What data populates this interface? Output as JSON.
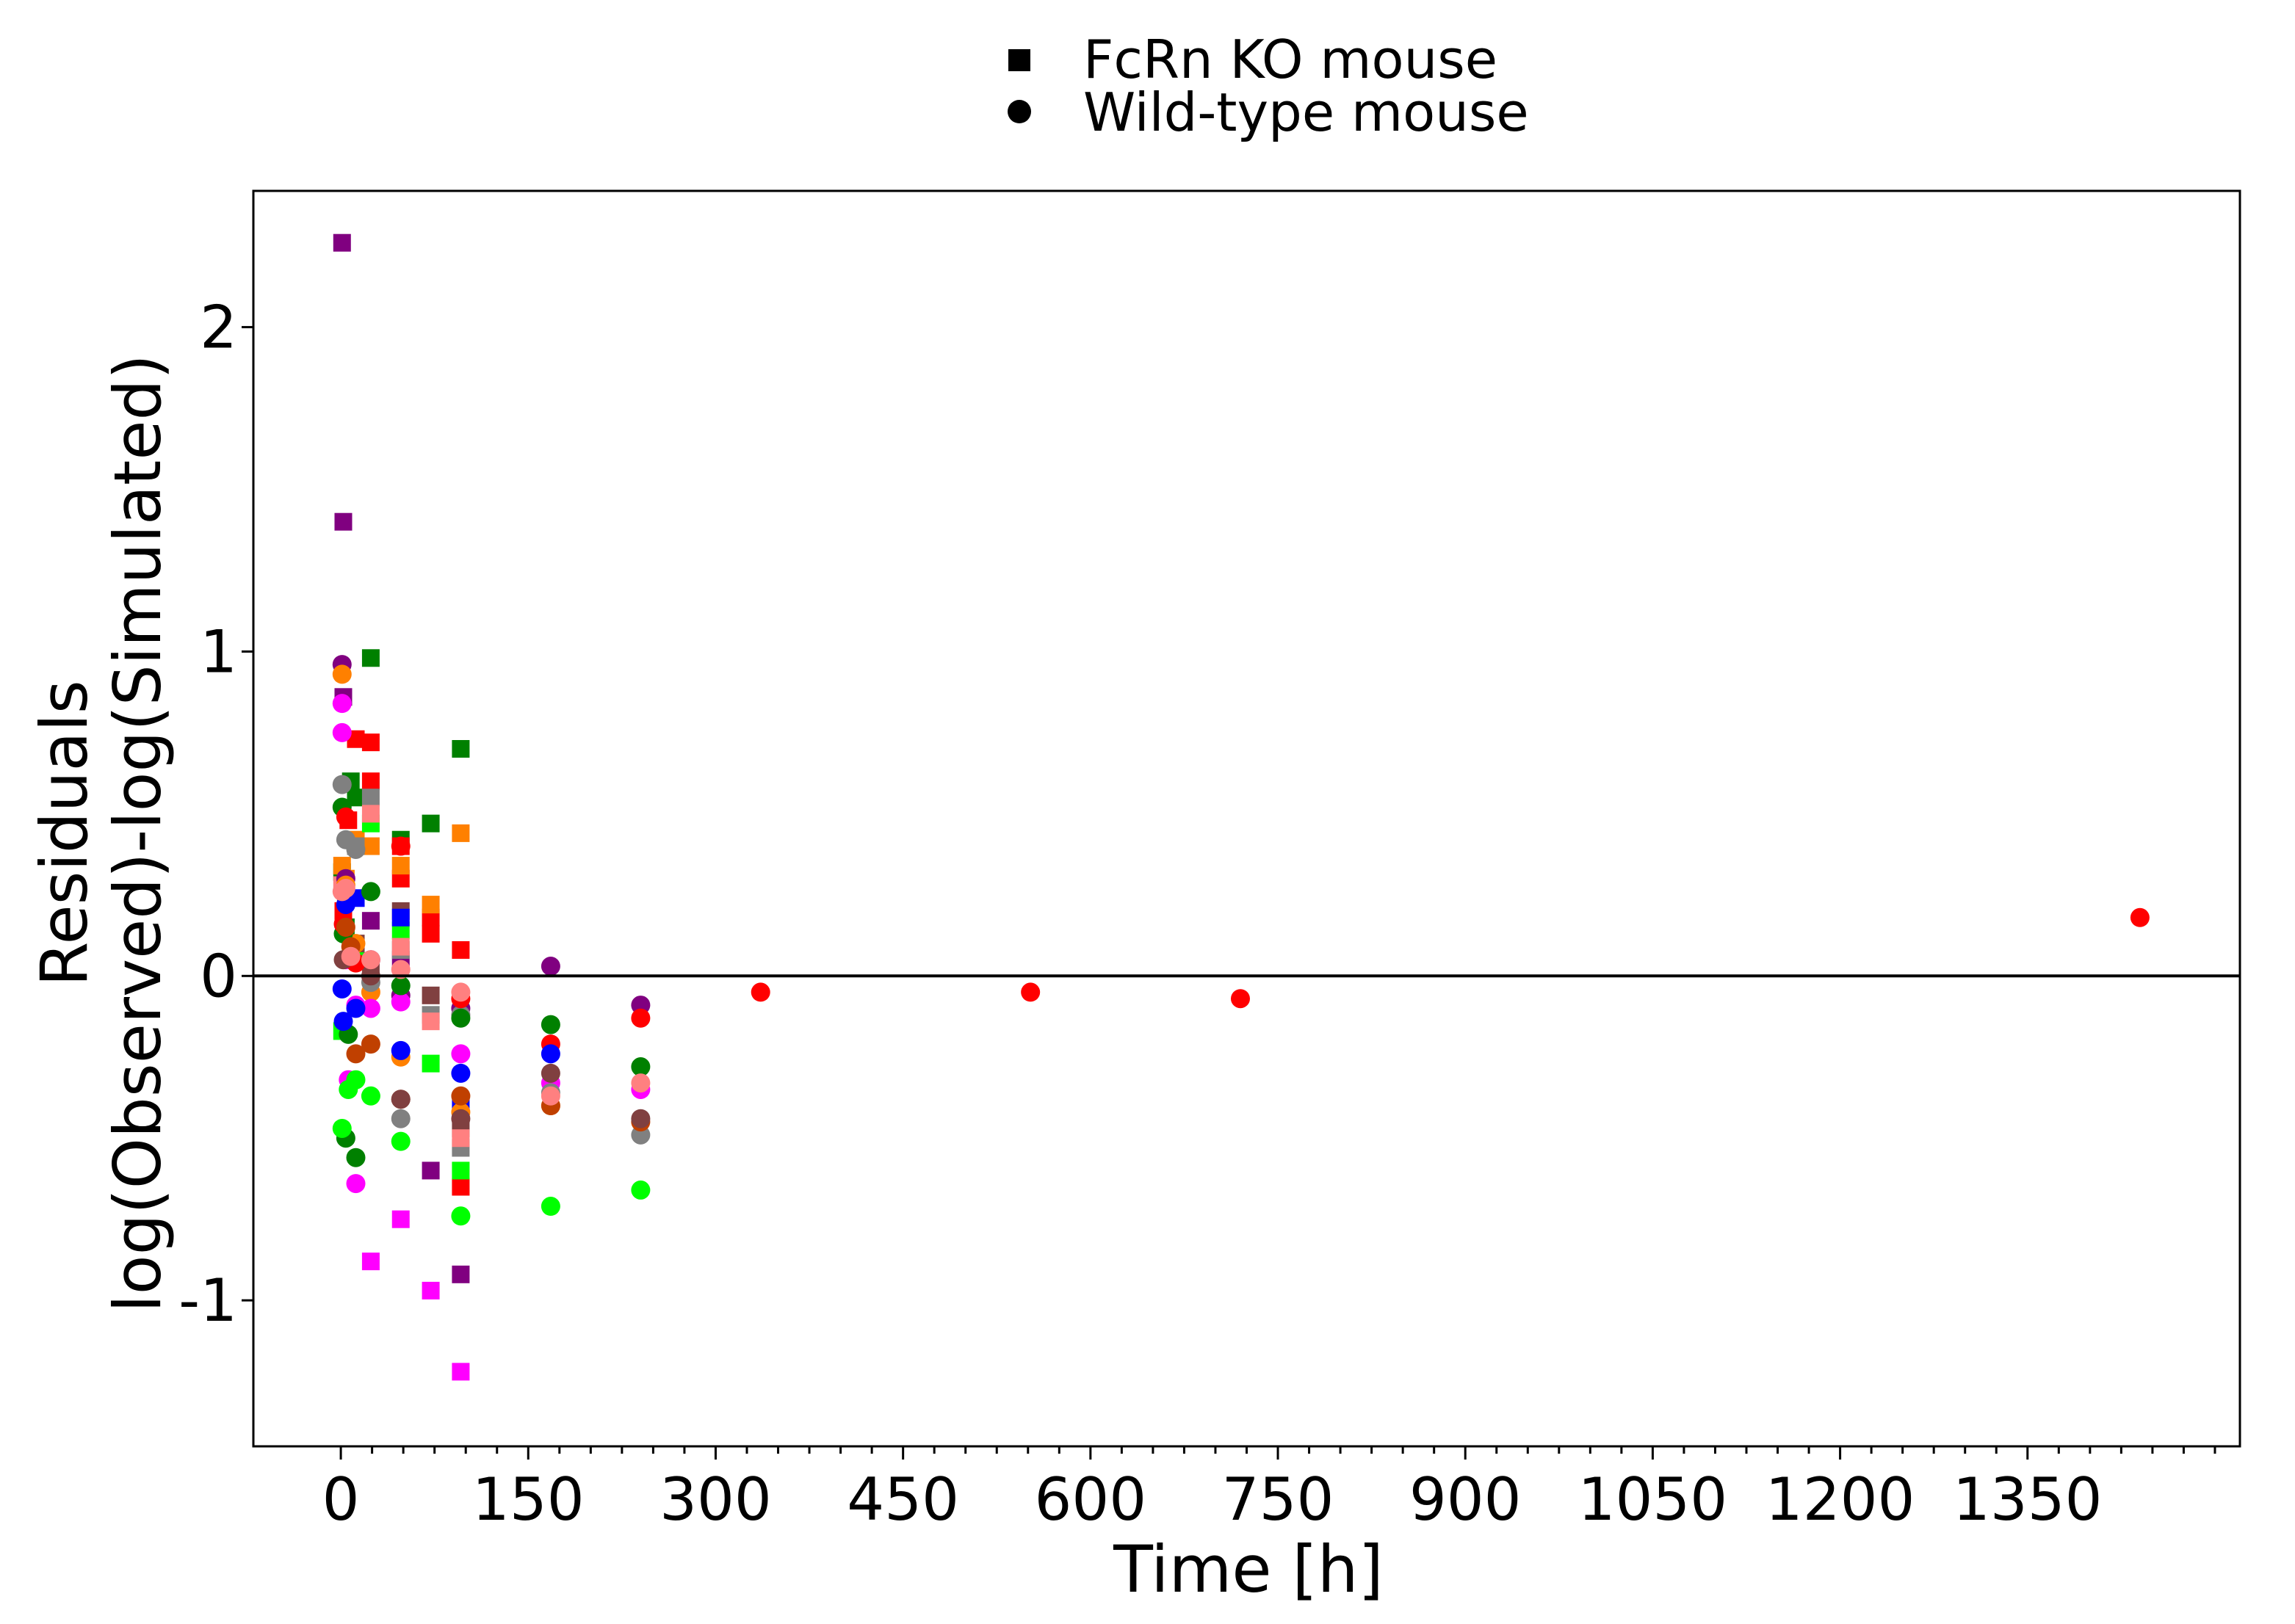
{
  "chart_data": {
    "type": "scatter",
    "title": "",
    "xlabel": "Time [h]",
    "ylabel": [
      "Residuals",
      "log(Observed)-log(Simulated)"
    ],
    "xlim": [
      -70,
      1520
    ],
    "ylim": [
      -1.45,
      2.42
    ],
    "xticks": [
      0,
      150,
      300,
      450,
      600,
      750,
      900,
      1050,
      1200,
      1350
    ],
    "xtick_labels": [
      "0",
      "150",
      "300",
      "450",
      "600",
      "750",
      "900",
      "1050",
      "1200",
      "1350"
    ],
    "x_minor_step": 25,
    "yticks": [
      -1,
      0,
      1,
      2
    ],
    "ytick_labels": [
      "-1",
      "0",
      "1",
      "2"
    ],
    "reference_line_y": 0,
    "grid": false,
    "legend": {
      "placement": "top-center",
      "entries": [
        {
          "label": "FcRn KO mouse",
          "marker": "square"
        },
        {
          "label": "Wild-type mouse",
          "marker": "circle"
        }
      ]
    },
    "marker_legend_color": "#000000",
    "series": [
      {
        "marker": "square",
        "color": "#800080",
        "points": [
          [
            1,
            2.26
          ],
          [
            2,
            1.4
          ],
          [
            2,
            0.86
          ],
          [
            24,
            0.17
          ],
          [
            72,
            -0.6
          ],
          [
            96,
            -0.92
          ],
          [
            48,
            0.05
          ]
        ]
      },
      {
        "marker": "square",
        "color": "#008000",
        "points": [
          [
            24,
            0.98
          ],
          [
            96,
            0.7
          ],
          [
            72,
            0.47
          ],
          [
            48,
            0.42
          ],
          [
            8,
            0.6
          ],
          [
            12,
            0.55
          ],
          [
            1,
            0.32
          ],
          [
            4,
            0.15
          ]
        ]
      },
      {
        "marker": "square",
        "color": "#ff0000",
        "points": [
          [
            12,
            0.73
          ],
          [
            24,
            0.72
          ],
          [
            24,
            0.6
          ],
          [
            6,
            0.48
          ],
          [
            48,
            0.4
          ],
          [
            48,
            0.3
          ],
          [
            72,
            0.18
          ],
          [
            72,
            0.13
          ],
          [
            96,
            0.08
          ],
          [
            96,
            -0.65
          ],
          [
            2,
            0.2
          ]
        ]
      },
      {
        "marker": "square",
        "color": "#ff8000",
        "points": [
          [
            96,
            0.44
          ],
          [
            72,
            0.22
          ],
          [
            48,
            0.34
          ],
          [
            24,
            0.4
          ],
          [
            12,
            0.42
          ],
          [
            1,
            0.34
          ],
          [
            4,
            0.3
          ]
        ]
      },
      {
        "marker": "square",
        "color": "#ff00ff",
        "points": [
          [
            24,
            -0.88
          ],
          [
            72,
            -0.97
          ],
          [
            96,
            -1.22
          ],
          [
            48,
            -0.75
          ],
          [
            2,
            -0.16
          ]
        ]
      },
      {
        "marker": "square",
        "color": "#00ff00",
        "points": [
          [
            24,
            0.47
          ],
          [
            48,
            0.14
          ],
          [
            72,
            -0.27
          ],
          [
            96,
            -0.6
          ],
          [
            1,
            -0.17
          ],
          [
            12,
            0.05
          ]
        ]
      },
      {
        "marker": "square",
        "color": "#808080",
        "points": [
          [
            12,
            0.4
          ],
          [
            24,
            0.55
          ],
          [
            48,
            0.08
          ],
          [
            72,
            -0.12
          ],
          [
            96,
            -0.53
          ],
          [
            4,
            0.25
          ]
        ]
      },
      {
        "marker": "square",
        "color": "#804040",
        "points": [
          [
            24,
            0.03
          ],
          [
            48,
            0.2
          ],
          [
            72,
            -0.06
          ],
          [
            96,
            -0.47
          ],
          [
            12,
            0.1
          ]
        ]
      },
      {
        "marker": "square",
        "color": "#0000ff",
        "points": [
          [
            12,
            0.24
          ],
          [
            48,
            0.18
          ],
          [
            96,
            -0.4
          ],
          [
            4,
            0.28
          ]
        ]
      },
      {
        "marker": "square",
        "color": "#ff8080",
        "points": [
          [
            24,
            0.5
          ],
          [
            48,
            0.09
          ],
          [
            72,
            -0.14
          ],
          [
            96,
            -0.5
          ],
          [
            1,
            0.28
          ]
        ]
      },
      {
        "marker": "circle",
        "color": "#800080",
        "points": [
          [
            1,
            0.96
          ],
          [
            168,
            0.03
          ],
          [
            240,
            -0.09
          ],
          [
            96,
            -0.1
          ],
          [
            24,
            0.05
          ],
          [
            48,
            -0.06
          ],
          [
            4,
            0.3
          ]
        ]
      },
      {
        "marker": "circle",
        "color": "#ff8000",
        "points": [
          [
            1,
            0.93
          ],
          [
            4,
            0.28
          ],
          [
            12,
            0.1
          ],
          [
            24,
            -0.05
          ],
          [
            48,
            -0.25
          ],
          [
            96,
            -0.42
          ],
          [
            168,
            -0.4
          ]
        ]
      },
      {
        "marker": "circle",
        "color": "#ff00ff",
        "points": [
          [
            1,
            0.84
          ],
          [
            1,
            0.75
          ],
          [
            4,
            0.05
          ],
          [
            6,
            -0.32
          ],
          [
            12,
            -0.64
          ],
          [
            12,
            -0.09
          ],
          [
            24,
            -0.1
          ],
          [
            48,
            -0.08
          ],
          [
            96,
            -0.24
          ],
          [
            168,
            -0.33
          ],
          [
            240,
            -0.35
          ]
        ]
      },
      {
        "marker": "circle",
        "color": "#808080",
        "points": [
          [
            1,
            0.59
          ],
          [
            4,
            0.42
          ],
          [
            12,
            0.39
          ],
          [
            24,
            -0.02
          ],
          [
            48,
            -0.44
          ],
          [
            96,
            -0.12
          ],
          [
            168,
            -0.36
          ],
          [
            240,
            -0.49
          ]
        ]
      },
      {
        "marker": "circle",
        "color": "#008000",
        "points": [
          [
            1,
            0.52
          ],
          [
            2,
            0.13
          ],
          [
            4,
            -0.5
          ],
          [
            6,
            -0.18
          ],
          [
            12,
            -0.56
          ],
          [
            24,
            0.26
          ],
          [
            48,
            -0.03
          ],
          [
            96,
            -0.13
          ],
          [
            168,
            -0.15
          ],
          [
            240,
            -0.28
          ]
        ]
      },
      {
        "marker": "circle",
        "color": "#ff0000",
        "points": [
          [
            4,
            0.49
          ],
          [
            2,
            0.16
          ],
          [
            12,
            0.04
          ],
          [
            48,
            0.4
          ],
          [
            96,
            -0.07
          ],
          [
            168,
            -0.21
          ],
          [
            240,
            -0.13
          ],
          [
            336,
            -0.05
          ],
          [
            552,
            -0.05
          ],
          [
            720,
            -0.07
          ],
          [
            1440,
            0.18
          ]
        ]
      },
      {
        "marker": "circle",
        "color": "#00ff00",
        "points": [
          [
            1,
            -0.47
          ],
          [
            6,
            -0.35
          ],
          [
            12,
            -0.32
          ],
          [
            24,
            -0.37
          ],
          [
            48,
            -0.51
          ],
          [
            96,
            -0.74
          ],
          [
            168,
            -0.71
          ],
          [
            240,
            -0.66
          ]
        ]
      },
      {
        "marker": "circle",
        "color": "#0000ff",
        "points": [
          [
            1,
            -0.04
          ],
          [
            2,
            -0.14
          ],
          [
            12,
            -0.1
          ],
          [
            48,
            -0.23
          ],
          [
            96,
            -0.3
          ],
          [
            168,
            -0.24
          ],
          [
            4,
            0.22
          ]
        ]
      },
      {
        "marker": "circle",
        "color": "#c04000",
        "points": [
          [
            4,
            0.15
          ],
          [
            12,
            -0.24
          ],
          [
            24,
            -0.21
          ],
          [
            48,
            -0.38
          ],
          [
            96,
            -0.37
          ],
          [
            168,
            -0.4
          ],
          [
            240,
            -0.45
          ],
          [
            8,
            0.09
          ]
        ]
      },
      {
        "marker": "circle",
        "color": "#804040",
        "points": [
          [
            2,
            0.05
          ],
          [
            24,
            0.0
          ],
          [
            48,
            -0.38
          ],
          [
            96,
            -0.44
          ],
          [
            168,
            -0.3
          ],
          [
            240,
            -0.44
          ]
        ]
      },
      {
        "marker": "circle",
        "color": "#ff8080",
        "points": [
          [
            1,
            0.26
          ],
          [
            4,
            0.27
          ],
          [
            8,
            0.06
          ],
          [
            24,
            0.05
          ],
          [
            48,
            0.02
          ],
          [
            96,
            -0.05
          ],
          [
            168,
            -0.37
          ],
          [
            240,
            -0.33
          ]
        ]
      }
    ]
  }
}
